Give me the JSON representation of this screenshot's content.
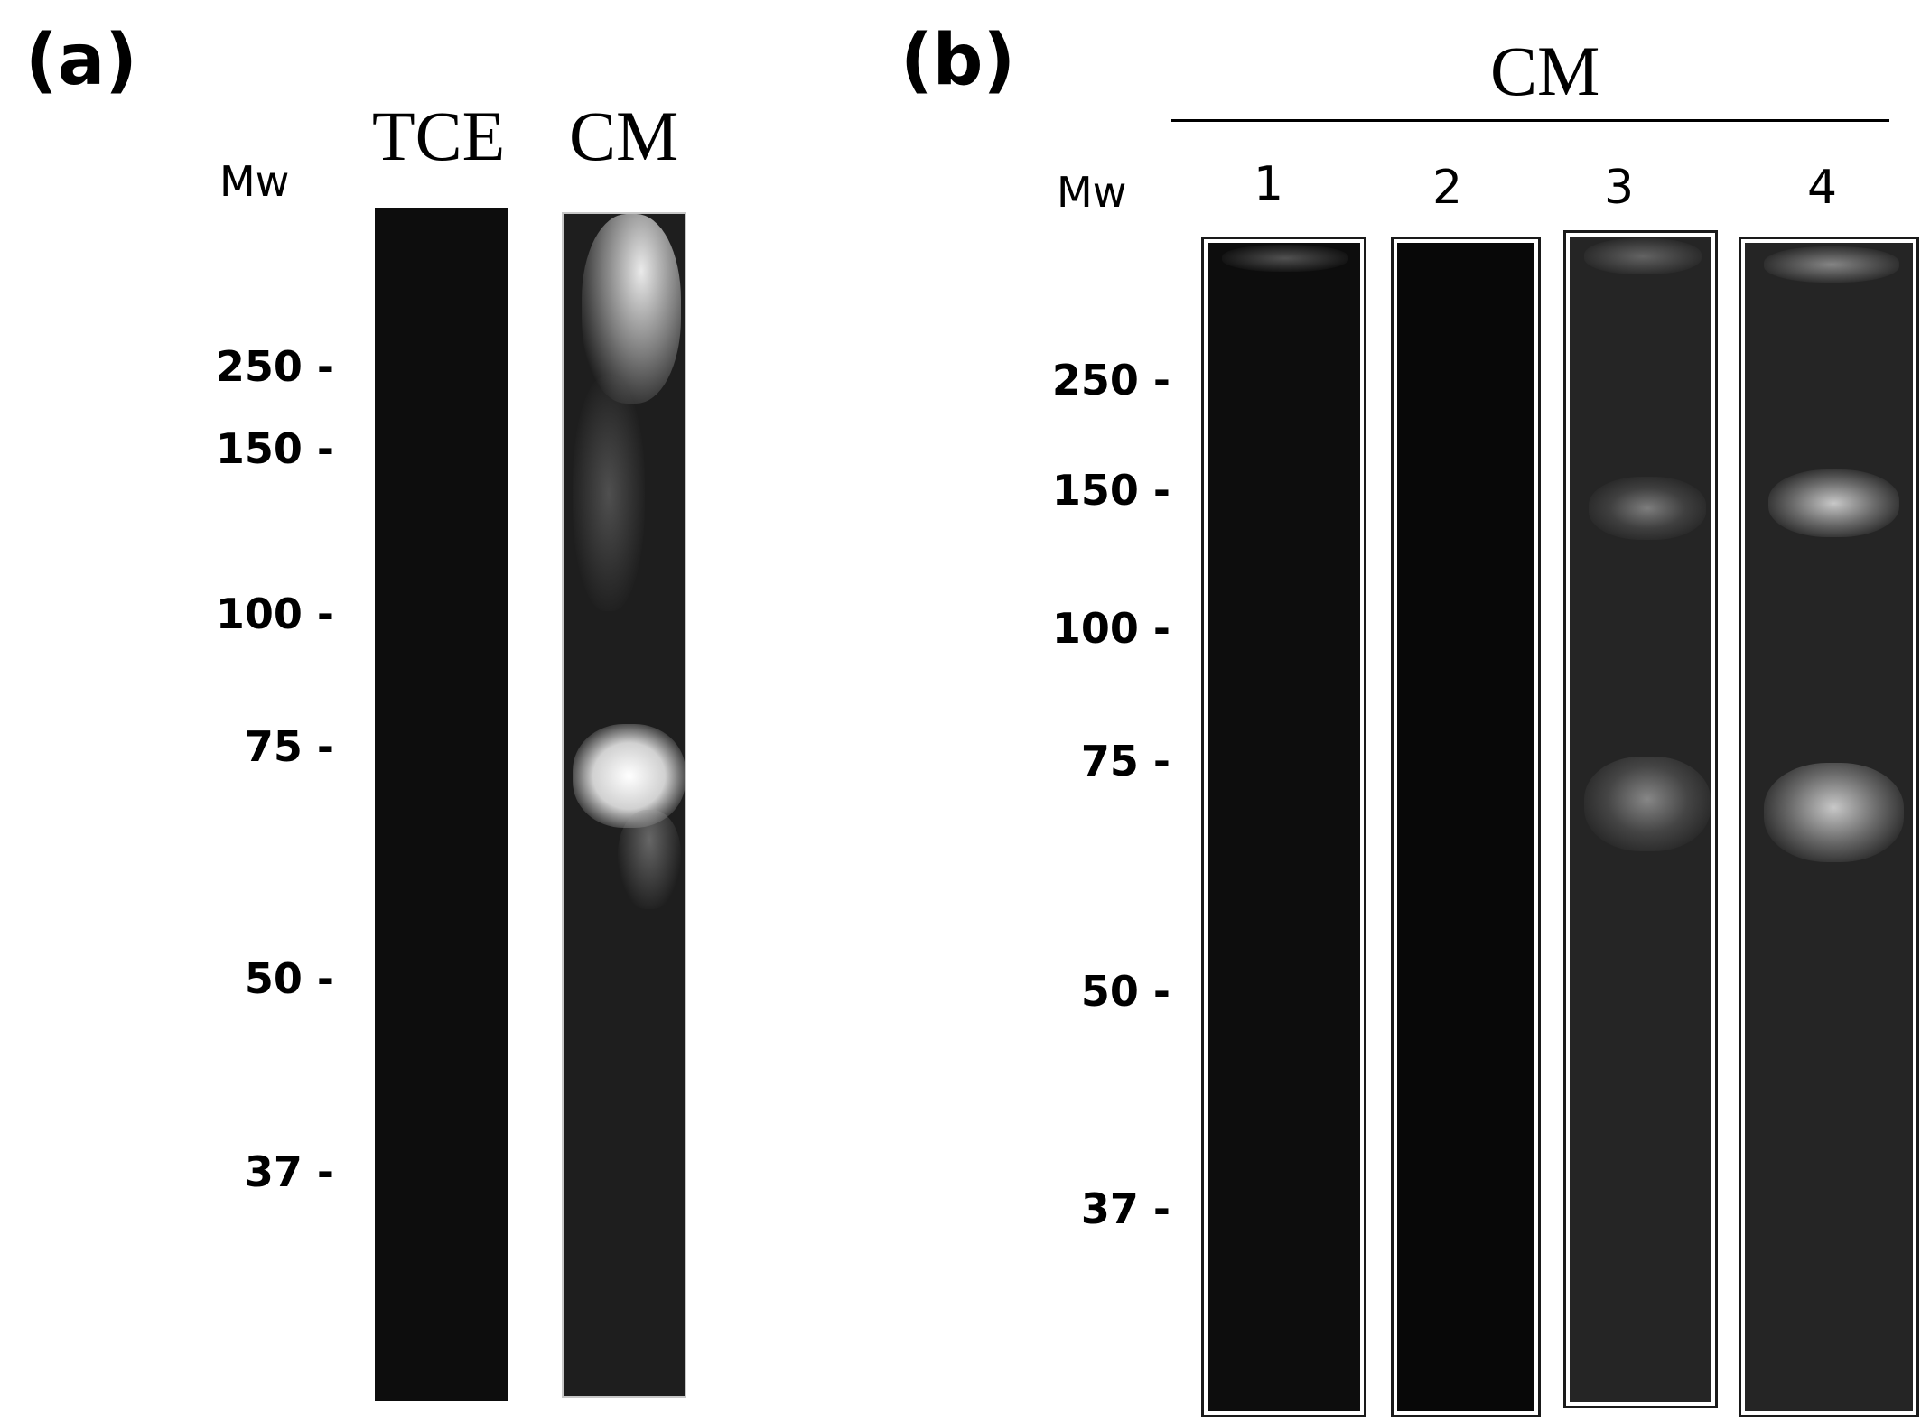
{
  "panel_a": {
    "letter": "(a)",
    "mw_header": "Mw",
    "lanes": [
      "TCE",
      "CM"
    ],
    "markers": [
      "250 -",
      "150 -",
      "100 -",
      "75 -",
      "50 -",
      "37 -"
    ]
  },
  "panel_b": {
    "letter": "(b)",
    "group_label": "CM",
    "mw_header": "Mw",
    "lanes": [
      "1",
      "2",
      "3",
      "4"
    ],
    "markers": [
      "250 -",
      "150 -",
      "100 -",
      "75 -",
      "50 -",
      "37 -"
    ]
  }
}
